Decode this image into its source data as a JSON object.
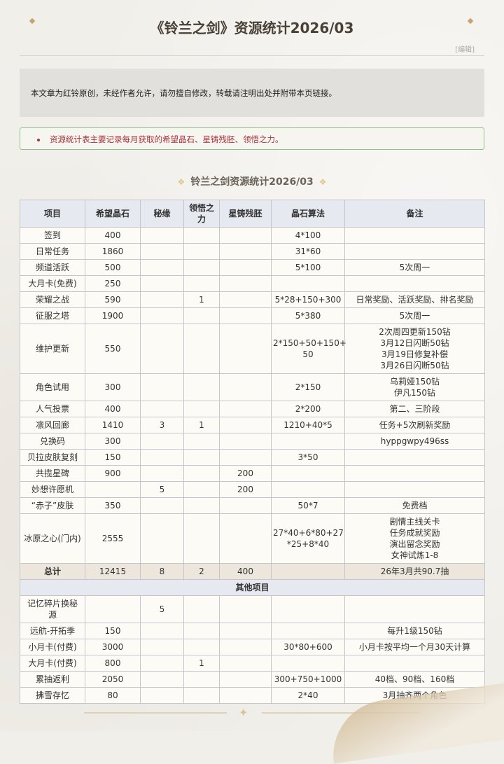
{
  "page": {
    "title": "《铃兰之剑》资源统计2026/03",
    "edit_link": "[编辑]",
    "notice": "本文章为红铃原创，未经作者允许，请勿擅自修改，转载请注明出处并附带本页链接。",
    "tip": "资源统计表主要记录每月获取的希望晶石、星铸残胚、领悟之力。",
    "subtitle": "铃兰之剑资源统计2026/03"
  },
  "table": {
    "headers": [
      "项目",
      "希望晶石",
      "秘缘",
      "领悟之\n力",
      "星铸残胚",
      "晶石算法",
      "备注"
    ],
    "rows": [
      [
        "签到",
        "400",
        "",
        "",
        "",
        "4*100",
        ""
      ],
      [
        "日常任务",
        "1860",
        "",
        "",
        "",
        "31*60",
        ""
      ],
      [
        "频道活跃",
        "500",
        "",
        "",
        "",
        "5*100",
        "5次周一"
      ],
      [
        "大月卡(免费)",
        "250",
        "",
        "",
        "",
        "",
        ""
      ],
      [
        "荣耀之战",
        "590",
        "",
        "1",
        "",
        "5*28+150+300",
        "日常奖励、活跃奖励、排名奖励"
      ],
      [
        "征服之塔",
        "1900",
        "",
        "",
        "",
        "5*380",
        "5次周一"
      ],
      [
        "维护更新",
        "550",
        "",
        "",
        "",
        "2*150+50+150+\n50",
        "2次周四更新150钻\n3月12日闪断50钻\n3月19日修复补偿\n3月26日闪断50钻"
      ],
      [
        "角色试用",
        "300",
        "",
        "",
        "",
        "2*150",
        "乌莉娅150钻\n伊凡150钻"
      ],
      [
        "人气投票",
        "400",
        "",
        "",
        "",
        "2*200",
        "第二、三阶段"
      ],
      [
        "凛风回廊",
        "1410",
        "3",
        "1",
        "",
        "1210+40*5",
        "任务+5次刷新奖励"
      ],
      [
        "兑换码",
        "300",
        "",
        "",
        "",
        "",
        "hyppgwpy496ss"
      ],
      [
        "贝拉皮肤复刻",
        "150",
        "",
        "",
        "",
        "3*50",
        ""
      ],
      [
        "共揽星碑",
        "900",
        "",
        "",
        "200",
        "",
        ""
      ],
      [
        "妙想许愿机",
        "",
        "5",
        "",
        "200",
        "",
        ""
      ],
      [
        "“赤子”皮肤",
        "350",
        "",
        "",
        "",
        "50*7",
        "免费档"
      ],
      [
        "冰原之心(门内)",
        "2555",
        "",
        "",
        "",
        "27*40+6*80+27\n*25+8*40",
        "剧情主线关卡\n任务成就奖励\n演出留念奖励\n女神试炼1-8"
      ]
    ],
    "total": [
      "总计",
      "12415",
      "8",
      "2",
      "400",
      "",
      "26年3月共90.7抽"
    ],
    "section_label": "其他项目",
    "other_rows": [
      [
        "记忆碎片换秘\n源",
        "",
        "5",
        "",
        "",
        "",
        ""
      ],
      [
        "远航-开拓季",
        "150",
        "",
        "",
        "",
        "",
        "每升1级150钻"
      ],
      [
        "小月卡(付费)",
        "3000",
        "",
        "",
        "",
        "30*80+600",
        "小月卡按平均一个月30天计算"
      ],
      [
        "大月卡(付费)",
        "800",
        "",
        "1",
        "",
        "",
        ""
      ],
      [
        "累抽返利",
        "2050",
        "",
        "",
        "",
        "300+750+1000",
        "40档、90档、160档"
      ],
      [
        "拂雪存忆",
        "80",
        "",
        "",
        "",
        "2*40",
        "3月抽齐两个角色"
      ]
    ]
  }
}
